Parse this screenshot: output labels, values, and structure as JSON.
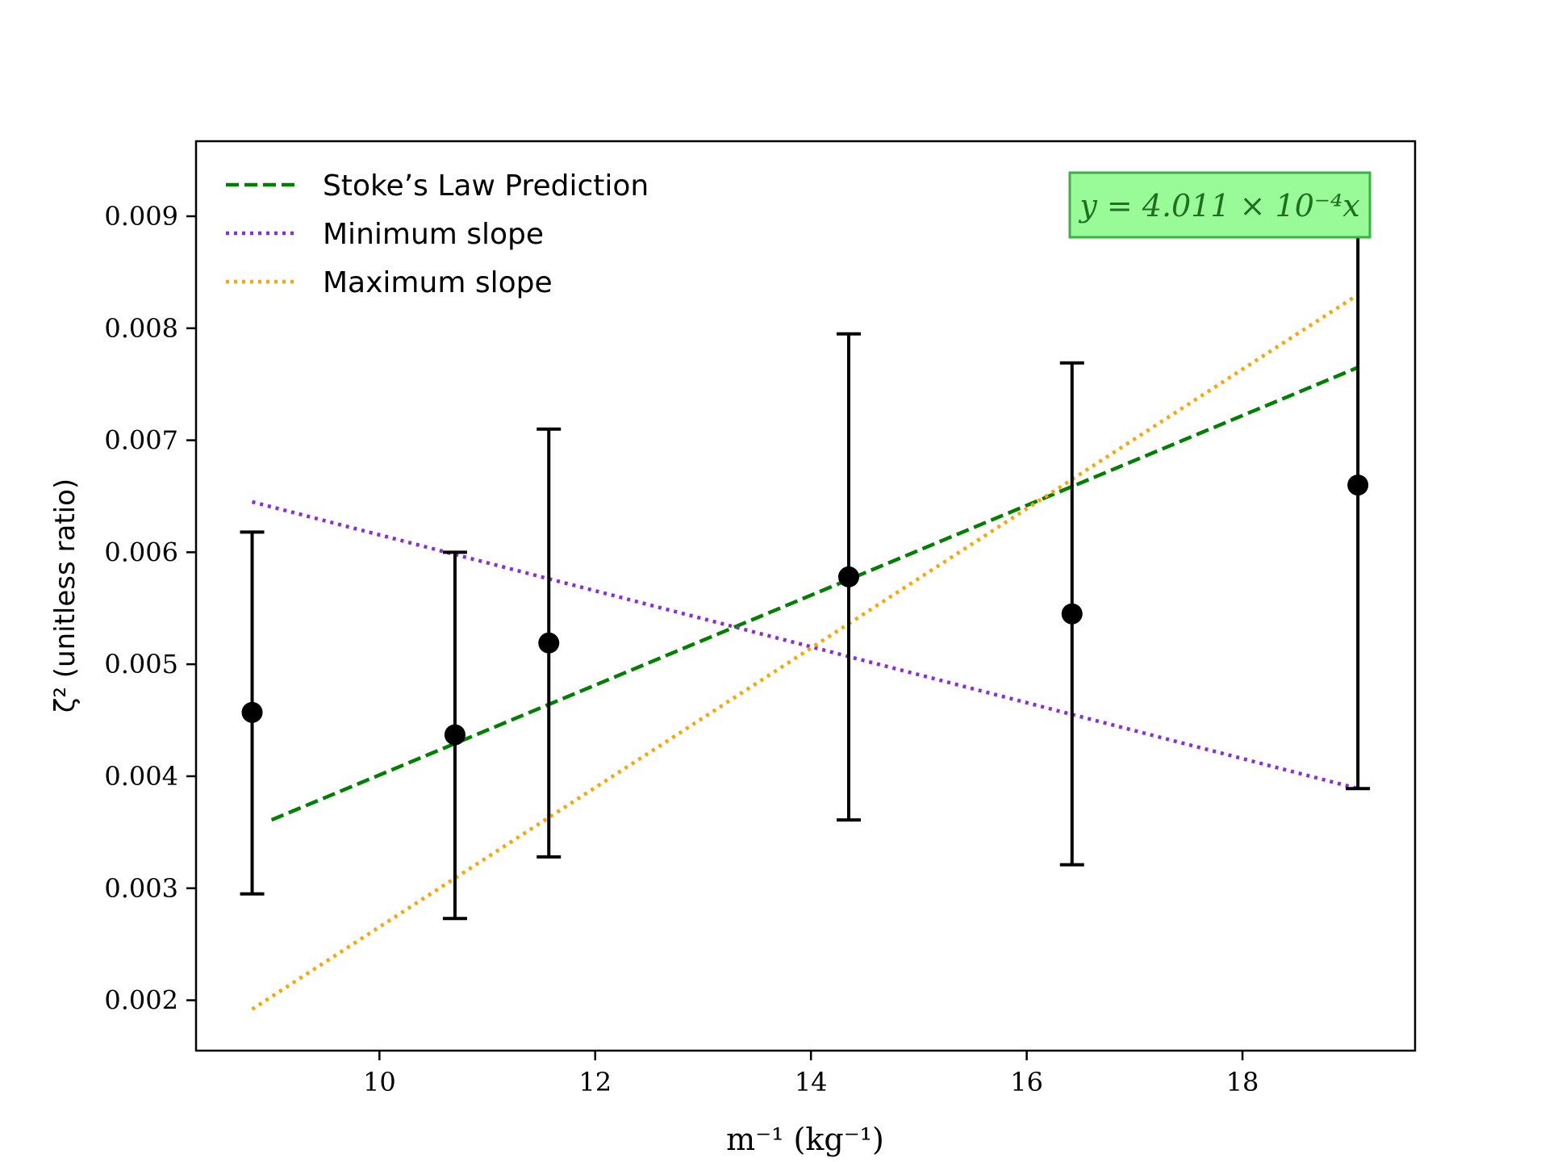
{
  "chart_data": {
    "type": "scatter",
    "xlabel": "m⁻¹ (kg⁻¹)",
    "ylabel": "ζ² (unitless ratio)",
    "xlim": [
      8.3,
      19.6
    ],
    "ylim": [
      0.00155,
      0.00967
    ],
    "x_ticks": [
      10,
      12,
      14,
      16,
      18
    ],
    "x_tick_labels": [
      "10",
      "12",
      "14",
      "16",
      "18"
    ],
    "y_ticks": [
      0.002,
      0.003,
      0.004,
      0.005,
      0.006,
      0.007,
      0.008,
      0.009
    ],
    "y_tick_labels": [
      "0.002",
      "0.003",
      "0.004",
      "0.005",
      "0.006",
      "0.007",
      "0.008",
      "0.009"
    ],
    "grid": false,
    "legend_position": "top-left",
    "points": [
      {
        "x": 8.82,
        "y": 0.00457,
        "yerr_low": 0.00295,
        "yerr_high": 0.00618
      },
      {
        "x": 10.7,
        "y": 0.00437,
        "yerr_low": 0.00273,
        "yerr_high": 0.006
      },
      {
        "x": 11.57,
        "y": 0.00519,
        "yerr_low": 0.00328,
        "yerr_high": 0.0071
      },
      {
        "x": 14.35,
        "y": 0.00578,
        "yerr_low": 0.00361,
        "yerr_high": 0.00795
      },
      {
        "x": 16.42,
        "y": 0.00545,
        "yerr_low": 0.00321,
        "yerr_high": 0.00769
      },
      {
        "x": 19.07,
        "y": 0.0066,
        "yerr_low": 0.00389,
        "yerr_high": 0.0093
      }
    ],
    "series": [
      {
        "name": "Stoke’s Law Prediction",
        "style": "dashed",
        "color": "#008000",
        "x": [
          9.0,
          19.07
        ],
        "y": [
          0.00361,
          0.00765
        ]
      },
      {
        "name": "Minimum slope",
        "style": "dotted",
        "color": "#8a2be2",
        "x": [
          8.82,
          19.07
        ],
        "y": [
          0.00645,
          0.00389
        ]
      },
      {
        "name": "Maximum slope",
        "style": "dotted",
        "color": "#ffa500",
        "x": [
          8.82,
          19.07
        ],
        "y": [
          0.00192,
          0.0083
        ]
      }
    ],
    "annotation": {
      "text": "y = 4.011 × 10⁻⁴x",
      "box_color": "#98fb98",
      "edge_color": "#3cb043"
    }
  }
}
